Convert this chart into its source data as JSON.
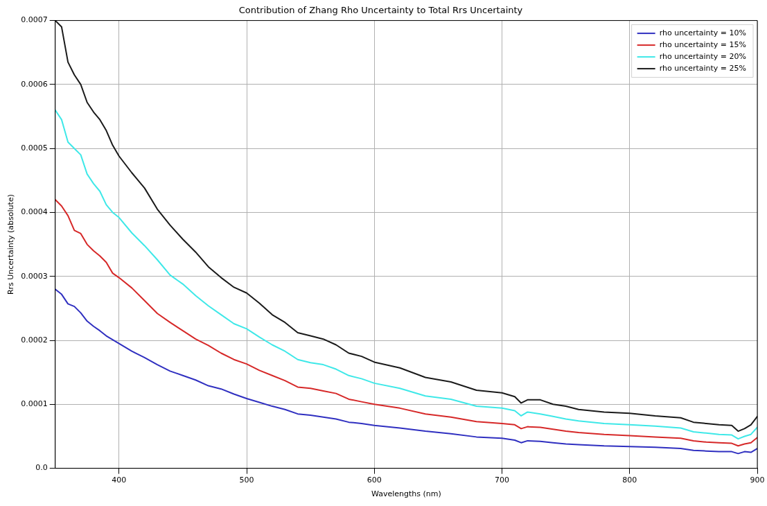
{
  "chart_data": {
    "type": "line",
    "title": "Contribution of Zhang Rho Uncertainty to Total Rrs Uncertainty",
    "xlabel": "Wavelengths (nm)",
    "ylabel": "Rrs Uncertainty (absolute)",
    "x": [
      350,
      355,
      360,
      365,
      370,
      375,
      380,
      385,
      390,
      395,
      400,
      410,
      420,
      430,
      440,
      450,
      460,
      470,
      480,
      490,
      500,
      510,
      520,
      530,
      540,
      550,
      560,
      570,
      580,
      590,
      600,
      620,
      640,
      660,
      680,
      700,
      710,
      715,
      720,
      730,
      740,
      750,
      760,
      780,
      800,
      820,
      840,
      850,
      860,
      870,
      880,
      885,
      890,
      895,
      900
    ],
    "series": [
      {
        "name": "rho uncertainty = 10%",
        "color": "#2f2fc0",
        "values": [
          0.00028,
          0.000272,
          0.000257,
          0.000253,
          0.000243,
          0.00023,
          0.000222,
          0.000215,
          0.000207,
          0.000201,
          0.000195,
          0.000183,
          0.000173,
          0.000162,
          0.000152,
          0.000145,
          0.000138,
          0.000129,
          0.000124,
          0.000116,
          0.000109,
          0.000103,
          9.7e-05,
          9.2e-05,
          8.5e-05,
          8.3e-05,
          8e-05,
          7.7e-05,
          7.2e-05,
          7e-05,
          6.7e-05,
          6.3e-05,
          5.8e-05,
          5.4e-05,
          4.9e-05,
          4.7e-05,
          4.4e-05,
          4e-05,
          4.3e-05,
          4.2e-05,
          4e-05,
          3.8e-05,
          3.7e-05,
          3.5e-05,
          3.4e-05,
          3.3e-05,
          3.1e-05,
          2.8e-05,
          2.7e-05,
          2.6e-05,
          2.6e-05,
          2.3e-05,
          2.6e-05,
          2.5e-05,
          3.1e-05
        ]
      },
      {
        "name": "rho uncertainty = 15%",
        "color": "#d62828",
        "values": [
          0.00042,
          0.00041,
          0.000395,
          0.000372,
          0.000367,
          0.00035,
          0.00034,
          0.000332,
          0.000322,
          0.000305,
          0.000298,
          0.000282,
          0.000262,
          0.000242,
          0.000228,
          0.000215,
          0.000202,
          0.000192,
          0.00018,
          0.00017,
          0.000163,
          0.000153,
          0.000145,
          0.000137,
          0.000127,
          0.000125,
          0.000121,
          0.000117,
          0.000108,
          0.000104,
          0.0001,
          9.4e-05,
          8.5e-05,
          8e-05,
          7.3e-05,
          7e-05,
          6.8e-05,
          6.2e-05,
          6.5e-05,
          6.4e-05,
          6.1e-05,
          5.8e-05,
          5.6e-05,
          5.3e-05,
          5.1e-05,
          4.9e-05,
          4.7e-05,
          4.3e-05,
          4.1e-05,
          4e-05,
          3.9e-05,
          3.5e-05,
          3.8e-05,
          4e-05,
          4.8e-05
        ]
      },
      {
        "name": "rho uncertainty = 20%",
        "color": "#3ee8e8",
        "values": [
          0.00056,
          0.000545,
          0.00051,
          0.0005,
          0.00049,
          0.00046,
          0.000445,
          0.000433,
          0.000412,
          0.0004,
          0.000392,
          0.000368,
          0.000348,
          0.000326,
          0.000302,
          0.000288,
          0.00027,
          0.000254,
          0.00024,
          0.000226,
          0.000218,
          0.000205,
          0.000193,
          0.000183,
          0.00017,
          0.000165,
          0.000162,
          0.000155,
          0.000145,
          0.00014,
          0.000133,
          0.000125,
          0.000113,
          0.000108,
          9.7e-05,
          9.4e-05,
          9e-05,
          8.2e-05,
          8.8e-05,
          8.5e-05,
          8.1e-05,
          7.7e-05,
          7.4e-05,
          7e-05,
          6.8e-05,
          6.6e-05,
          6.3e-05,
          5.7e-05,
          5.5e-05,
          5.3e-05,
          5.2e-05,
          4.6e-05,
          5e-05,
          5.3e-05,
          6.4e-05
        ]
      },
      {
        "name": "rho uncertainty = 25%",
        "color": "#1a1a1a",
        "values": [
          0.0007,
          0.00069,
          0.000635,
          0.000615,
          0.0006,
          0.000572,
          0.000557,
          0.000545,
          0.000528,
          0.000505,
          0.000488,
          0.000462,
          0.000438,
          0.000405,
          0.00038,
          0.000358,
          0.000338,
          0.000315,
          0.000298,
          0.000283,
          0.000274,
          0.000258,
          0.00024,
          0.000228,
          0.000212,
          0.000207,
          0.000202,
          0.000193,
          0.00018,
          0.000175,
          0.000166,
          0.000157,
          0.000142,
          0.000135,
          0.000122,
          0.000118,
          0.000112,
          0.000102,
          0.000107,
          0.000107,
          0.0001,
          9.7e-05,
          9.2e-05,
          8.8e-05,
          8.6e-05,
          8.2e-05,
          7.9e-05,
          7.2e-05,
          7e-05,
          6.8e-05,
          6.7e-05,
          5.8e-05,
          6.2e-05,
          6.8e-05,
          8.1e-05
        ]
      }
    ],
    "xlim": [
      350,
      900
    ],
    "xticks": [
      400,
      500,
      600,
      700,
      800,
      900
    ],
    "ylim": [
      0,
      0.0007
    ],
    "yticks": [
      {
        "value": 0,
        "label": "0.0"
      },
      0.0001,
      0.0002,
      0.0003,
      0.0004,
      0.0005,
      0.0006,
      0.0007
    ],
    "grid": true,
    "legend": "top right",
    "marker": "none",
    "line_style": "solid"
  }
}
